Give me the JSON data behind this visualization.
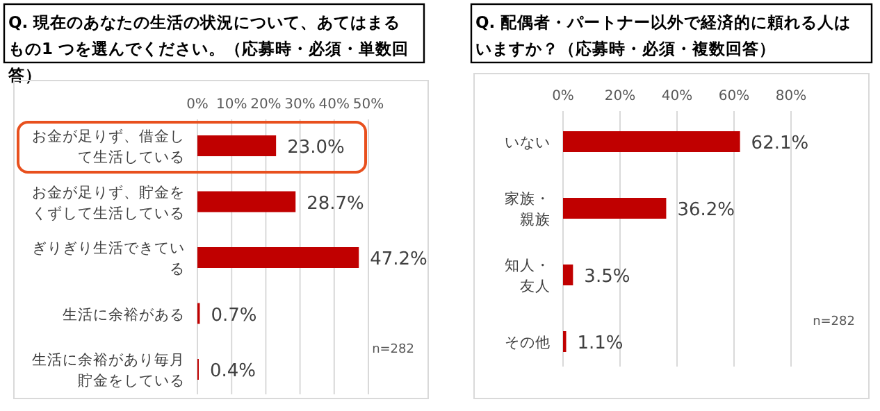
{
  "chart_data": [
    {
      "type": "bar",
      "orientation": "horizontal",
      "title": "Q. 現在のあなたの生活の状況について、あてはまるもの1 つを選んでください。（応募時・必須・単数回答）",
      "categories": [
        "お金が足りず、借金して生活している",
        "お金が足りず、貯金をくずして生活している",
        "ぎりぎり生活できている",
        "生活に余裕がある",
        "生活に余裕があり毎月貯金をしている"
      ],
      "series": [
        {
          "color": "#c00000",
          "values": [
            23.0,
            28.7,
            47.2,
            0.7,
            0.4
          ],
          "value_labels": [
            "23.0%",
            "28.7%",
            "47.2%",
            "0.7%",
            "0.4%"
          ]
        }
      ],
      "xlim": [
        0,
        50
      ],
      "xticks": [
        {
          "value": 0,
          "label": "0%"
        },
        {
          "value": 10,
          "label": "10%"
        },
        {
          "value": 20,
          "label": "20%"
        },
        {
          "value": 30,
          "label": "30%"
        },
        {
          "value": 40,
          "label": "40%"
        },
        {
          "value": 50,
          "label": "50%"
        }
      ],
      "grid": "x",
      "annotations": [
        "n=282"
      ]
    },
    {
      "type": "bar",
      "orientation": "horizontal",
      "title": "Q. 配偶者・パートナー以外で経済的に頼れる人はいますか？（応募時・必須・複数回答）",
      "categories": [
        "いない",
        "家族・親族",
        "知人・友人",
        "その他"
      ],
      "series": [
        {
          "color": "#c00000",
          "values": [
            62.1,
            36.2,
            3.5,
            1.1
          ],
          "value_labels": [
            "62.1%",
            "36.2%",
            "3.5%",
            "1.1%"
          ]
        }
      ],
      "xlim": [
        0,
        80
      ],
      "xticks": [
        {
          "value": 0,
          "label": "0%"
        },
        {
          "value": 20,
          "label": "20%"
        },
        {
          "value": 40,
          "label": "40%"
        },
        {
          "value": 60,
          "label": "60%"
        },
        {
          "value": 80,
          "label": "80%"
        }
      ],
      "grid": "x",
      "annotations": [
        "n=282"
      ]
    }
  ]
}
